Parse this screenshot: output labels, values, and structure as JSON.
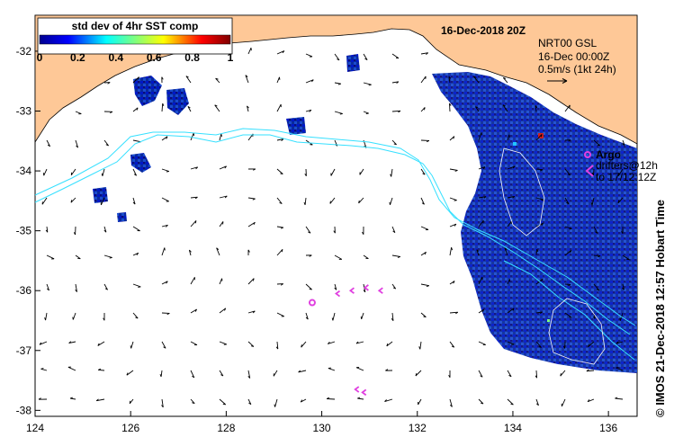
{
  "map": {
    "longitude_ticks": [
      "124",
      "126",
      "128",
      "130",
      "132",
      "134",
      "136"
    ],
    "latitude_ticks": [
      "-32",
      "-33",
      "-34",
      "-35",
      "-36",
      "-37",
      "-38"
    ],
    "lon_range": [
      124,
      136.6
    ],
    "lat_range": [
      -31.4,
      -38.1
    ],
    "land_color": "#fec897",
    "sea_color": "#ffffff"
  },
  "colorbar": {
    "title": "std dev of 4hr SST comp",
    "ticks": [
      "0",
      "0.2",
      "0.4",
      "0.6",
      "0.8",
      "1"
    ],
    "range": [
      0,
      1
    ]
  },
  "header": {
    "date": "16-Dec-2018 20Z"
  },
  "legend": {
    "line1": "NRT00 GSL",
    "line2": "16-Dec 00:00Z",
    "scale": "0.5m/s (1kt 24h)"
  },
  "argo": {
    "label": "Argo",
    "drifters_line1": "drifters@12h",
    "drifters_line2": "to 17/12:12Z",
    "float_position": [
      129.8,
      -36.2
    ],
    "drifter_tracks": [
      [
        [
          131.4,
          -36.25
        ],
        [
          131.2,
          -36.0
        ],
        [
          130.9,
          -35.95
        ],
        [
          130.6,
          -36.0
        ],
        [
          130.3,
          -36.05
        ]
      ],
      [
        [
          131.0,
          -37.75
        ],
        [
          130.85,
          -37.7
        ],
        [
          130.7,
          -37.65
        ]
      ]
    ],
    "marker_color": "#e040e0"
  },
  "footer": {
    "side_text": "© IMOS 21-Dec-2018 12:57 Hobart Time"
  }
}
